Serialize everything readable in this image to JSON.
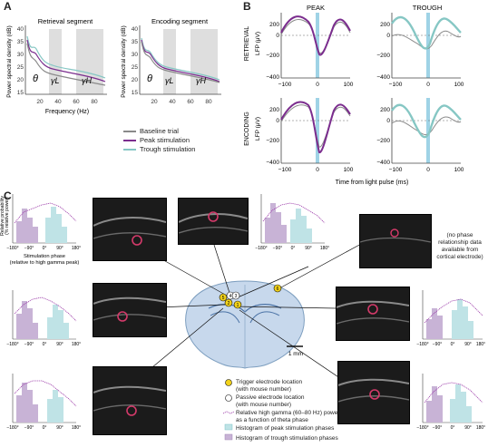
{
  "panel_letters": {
    "a": "A",
    "b": "B",
    "c": "C"
  },
  "panel_a": {
    "left_title": "Retrieval segment",
    "right_title": "Encoding segment",
    "ylabel": "Power spectral density (dB)",
    "xlabel": "Frequency (Hz)",
    "yticks": [
      "40",
      "35",
      "30",
      "25",
      "20",
      "15"
    ],
    "xticks": [
      "20",
      "40",
      "60",
      "80"
    ],
    "bands": {
      "theta": "θ",
      "gamma_l": "γL",
      "gamma_h": "γH"
    },
    "legend": [
      {
        "label": "Baseline trial",
        "color": "#8a8a8a"
      },
      {
        "label": "Peak stimulation",
        "color": "#7b2d8e"
      },
      {
        "label": "Trough stimulation",
        "color": "#86c7c4"
      }
    ]
  },
  "panel_b": {
    "col_titles": [
      "PEAK",
      "TROUGH"
    ],
    "row_labels": [
      "RETRIEVAL",
      "ENCODING"
    ],
    "ylabel": "LFP (μV)",
    "xlabel": "Time from light pulse (ms)",
    "yticks": [
      "200",
      "0",
      "−200",
      "−400"
    ],
    "xticks": [
      "−100",
      "0",
      "100"
    ]
  },
  "panel_c": {
    "stim_phase_label": "Stimulation phase",
    "stim_phase_sub": "(relative to high gamma peak)",
    "rel_prob_label": "Relative probability",
    "rel_prob_sub": "(% relative power)",
    "hist_xticks": [
      "−180°",
      "−90°",
      "0°",
      "90°",
      "180°"
    ],
    "no_data_note": "(no phase relationship data available from cortical electrode)",
    "scale_bar": "1 mm",
    "electrodes": [
      "5",
      "4",
      "3",
      "2",
      "1",
      "6"
    ],
    "key": [
      {
        "label": "Trigger electrode location",
        "sub": "(with mouse number)"
      },
      {
        "label": "Passive electrode location",
        "sub": "(with mouse number)"
      },
      {
        "label": "Relative high gamma (60–80 Hz) power",
        "sub": "as a function of theta phase"
      },
      {
        "label": "Histogram of peak stimulation phases",
        "sub": ""
      },
      {
        "label": "Histogram of trough stimulation phases",
        "sub": ""
      }
    ]
  },
  "colors": {
    "peak": "#7b2d8e",
    "trough": "#86c7c4",
    "baseline": "#8a8a8a",
    "light": "#9fd3e6",
    "band": "#dedede",
    "hist_peak": "#c8b3d6",
    "hist_trough": "#bfe3e6",
    "brain": "#c7d8ec",
    "electrode": "#f2d21a"
  }
}
